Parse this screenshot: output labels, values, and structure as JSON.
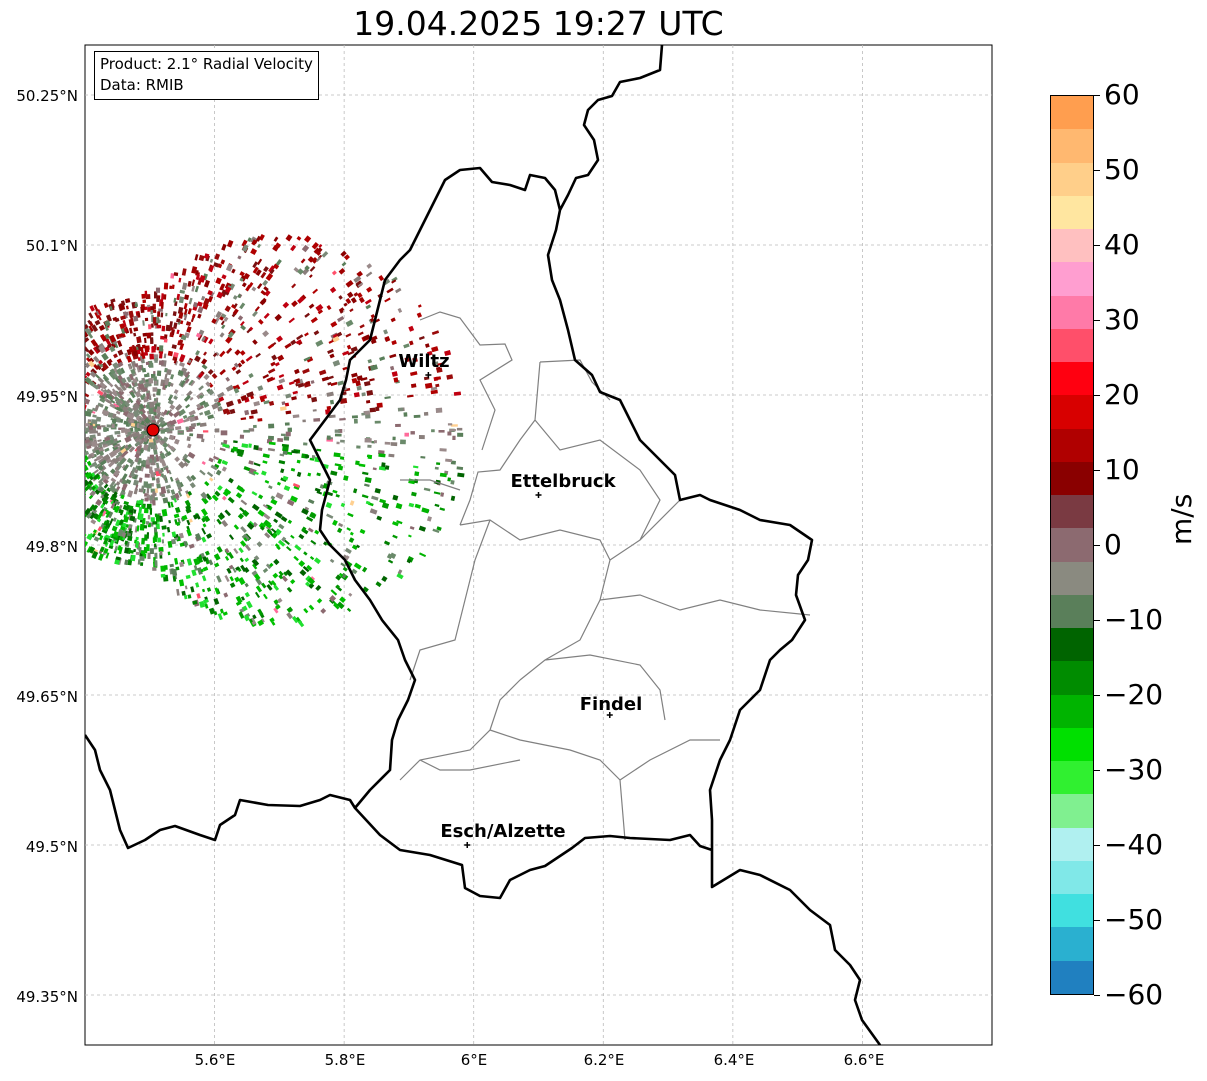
{
  "title": "19.04.2025 19:27 UTC",
  "info_box": {
    "product": "Product: 2.1° Radial Velocity",
    "data": "Data: RMIB"
  },
  "lat_labels": [
    "50.25°N",
    "50.1°N",
    "49.95°N",
    "49.8°N",
    "49.65°N",
    "49.5°N",
    "49.35°N"
  ],
  "lon_labels": [
    "5.6°E",
    "5.8°E",
    "6°E",
    "6.2°E",
    "6.4°E",
    "6.6°E"
  ],
  "cities": [
    {
      "name": "Wiltz",
      "lon": 5.93,
      "lat": 49.97
    },
    {
      "name": "Ettelbruck",
      "lon": 6.1,
      "lat": 49.85
    },
    {
      "name": "Findel",
      "lon": 6.21,
      "lat": 49.63
    },
    {
      "name": "Esch/Alzette",
      "lon": 5.99,
      "lat": 49.5
    }
  ],
  "radar_site": {
    "lon": 5.505,
    "lat": 49.915
  },
  "colorbar": {
    "unit": "m/s",
    "min": -60,
    "max": 60,
    "tick_labels": [
      "60",
      "50",
      "40",
      "30",
      "20",
      "10",
      "0",
      "−10",
      "−20",
      "−30",
      "−40",
      "−50",
      "−60"
    ],
    "colors_top_to_bottom": [
      "#ff9e4f",
      "#ffb870",
      "#ffcf8a",
      "#ffe6a0",
      "#ffc0c0",
      "#ff9ed0",
      "#ff7aa8",
      "#ff4f6a",
      "#ff0010",
      "#d80000",
      "#b00000",
      "#8a0000",
      "#7a3a42",
      "#8c6a70",
      "#8a8a80",
      "#5a7f5a",
      "#006400",
      "#008c00",
      "#00b400",
      "#00e000",
      "#30f030",
      "#80f090",
      "#b0f0f0",
      "#80e8e8",
      "#40e0e0",
      "#2ab0d0",
      "#2080c0"
    ]
  },
  "map": {
    "lon_range": [
      5.4,
      6.8
    ],
    "lat_range": [
      49.3,
      50.3
    ],
    "gridlines": true
  }
}
